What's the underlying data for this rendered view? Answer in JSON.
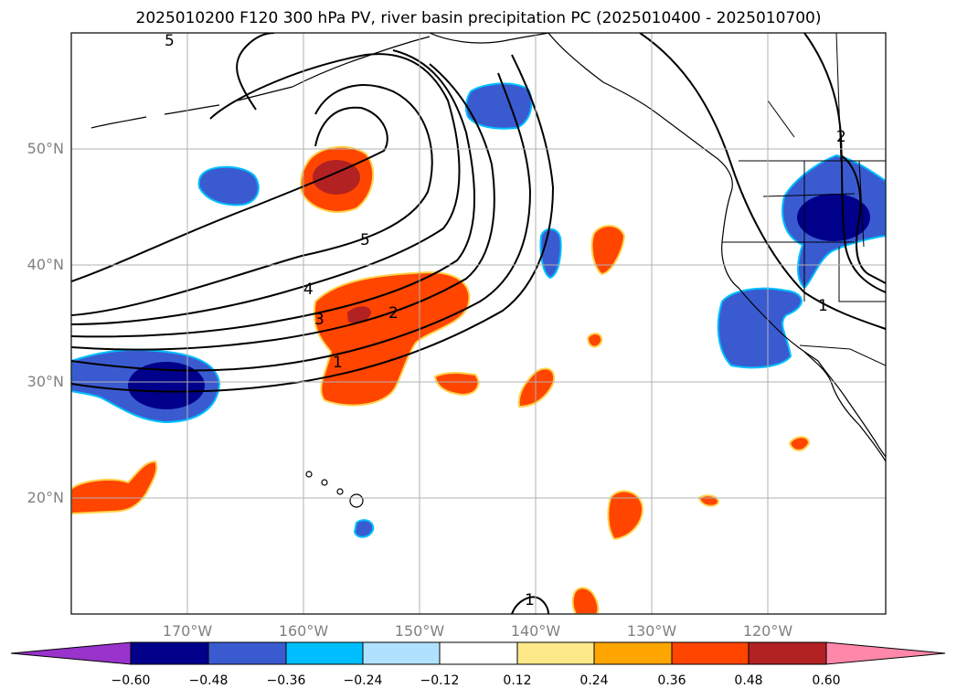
{
  "title": "2025010200 F120 300 hPa PV, river basin precipitation PC (2025010400 - 2025010700)",
  "lat_labels": [
    "50°N",
    "40°N",
    "30°N",
    "20°N"
  ],
  "lon_labels": [
    "170°W",
    "160°W",
    "150°W",
    "140°W",
    "130°W",
    "120°W"
  ],
  "contour_labels": [
    "5",
    "4",
    "3",
    "2",
    "1",
    "5",
    "2",
    "1",
    "1"
  ],
  "colorbar": {
    "colors": [
      "#9933cc",
      "#00008b",
      "#3a5bd0",
      "#00bfff",
      "#b0e2ff",
      "#ffffff",
      "#fde98a",
      "#ffa500",
      "#ff4500",
      "#b22222",
      "#ff88aa"
    ],
    "tick_labels": [
      "−0.60",
      "−0.48",
      "−0.36",
      "−0.24",
      "−0.12",
      "0.12",
      "0.24",
      "0.36",
      "0.48",
      "0.60"
    ]
  }
}
